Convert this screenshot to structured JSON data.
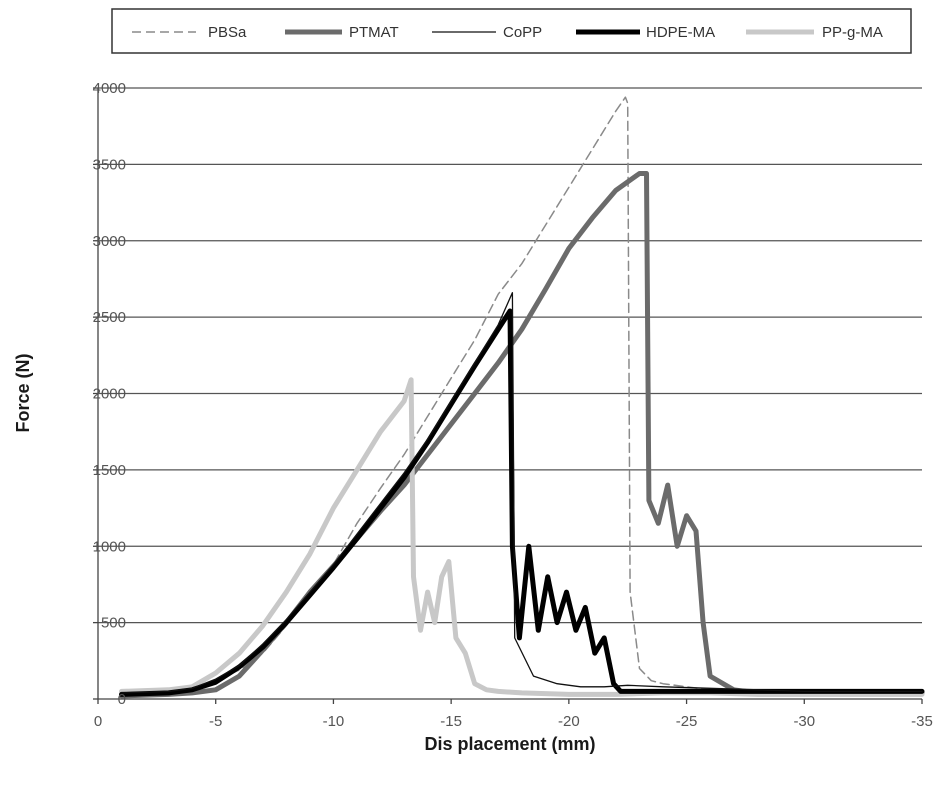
{
  "chart_data": {
    "type": "line",
    "title": "",
    "xlabel": "Dis placement (mm)",
    "ylabel": "Force (N)",
    "xlim": [
      0,
      -35
    ],
    "ylim": [
      0,
      4000
    ],
    "x_ticks": [
      0,
      -5,
      -10,
      -15,
      -20,
      -25,
      -30,
      -35
    ],
    "x_tick_labels": [
      "0",
      "-5",
      "-10",
      "-15",
      "-20",
      "-25",
      "-30",
      "-35"
    ],
    "y_ticks": [
      0,
      500,
      1000,
      1500,
      2000,
      2500,
      3000,
      3500,
      4000
    ],
    "y_tick_labels": [
      "0",
      "500",
      "1000",
      "1500",
      "2000",
      "2500",
      "3000",
      "3500",
      "4000"
    ],
    "grid": "horizontal",
    "legend_position": "top",
    "series": [
      {
        "name": "PBSa",
        "color": "#8a8a8a",
        "style": "dashed",
        "x": [
          -1,
          -3,
          -4,
          -5,
          -6,
          -7,
          -8,
          -9,
          -10,
          -11,
          -12,
          -13,
          -14,
          -15,
          -16,
          -17,
          -18,
          -19,
          -20,
          -21,
          -22,
          -22.4,
          -22.5,
          -22.6,
          -23,
          -23.5,
          -24,
          -25,
          -26,
          -28,
          -30,
          -32,
          -35
        ],
        "y": [
          40,
          50,
          70,
          120,
          190,
          300,
          480,
          700,
          880,
          1150,
          1380,
          1600,
          1850,
          2100,
          2350,
          2650,
          2850,
          3100,
          3350,
          3600,
          3850,
          3940,
          3900,
          700,
          200,
          120,
          100,
          80,
          60,
          40,
          40,
          40,
          40
        ]
      },
      {
        "name": "PTMAT",
        "color": "#6b6b6b",
        "style": "solid-thick",
        "x": [
          -1,
          -3,
          -4,
          -5,
          -6,
          -7,
          -8,
          -9,
          -10,
          -11,
          -12,
          -13,
          -14,
          -15,
          -16,
          -17,
          -18,
          -19,
          -20,
          -21,
          -22,
          -23,
          -23.3,
          -23.4,
          -23.8,
          -24.2,
          -24.6,
          -25,
          -25.4,
          -25.7,
          -26,
          -27,
          -28,
          -30,
          -32,
          -35
        ],
        "y": [
          20,
          30,
          40,
          60,
          150,
          320,
          500,
          700,
          870,
          1050,
          1230,
          1400,
          1600,
          1800,
          2000,
          2200,
          2420,
          2680,
          2950,
          3150,
          3330,
          3440,
          3440,
          1300,
          1150,
          1400,
          1000,
          1200,
          1100,
          500,
          150,
          60,
          40,
          40,
          40,
          40
        ]
      },
      {
        "name": "CoPP",
        "color": "#111111",
        "style": "solid-thin",
        "x": [
          -1,
          -3,
          -4,
          -5,
          -6,
          -7,
          -8,
          -9,
          -10,
          -11,
          -12,
          -13,
          -14,
          -15,
          -16,
          -17,
          -17.6,
          -17.7,
          -18.5,
          -19.5,
          -20.5,
          -21.5,
          -22.5,
          -24,
          -26,
          -28,
          -30,
          -32,
          -35
        ],
        "y": [
          40,
          50,
          70,
          130,
          220,
          360,
          520,
          700,
          880,
          1080,
          1280,
          1480,
          1700,
          1950,
          2200,
          2450,
          2660,
          400,
          150,
          100,
          80,
          80,
          90,
          80,
          70,
          60,
          50,
          50,
          50
        ]
      },
      {
        "name": "HDPE-MA",
        "color": "#000000",
        "style": "solid-thick",
        "x": [
          -1,
          -3,
          -4,
          -5,
          -6,
          -7,
          -8,
          -9,
          -10,
          -11,
          -12,
          -13,
          -14,
          -15,
          -16,
          -17,
          -17.5,
          -17.6,
          -17.9,
          -18.3,
          -18.7,
          -19.1,
          -19.5,
          -19.9,
          -20.3,
          -20.7,
          -21.1,
          -21.5,
          -21.9,
          -22.2,
          -24,
          -26,
          -28,
          -30,
          -32,
          -35
        ],
        "y": [
          30,
          40,
          60,
          110,
          210,
          340,
          500,
          680,
          860,
          1050,
          1250,
          1450,
          1680,
          1930,
          2180,
          2420,
          2540,
          1000,
          400,
          1000,
          450,
          800,
          500,
          700,
          450,
          600,
          300,
          400,
          100,
          50,
          50,
          50,
          50,
          50,
          50,
          50
        ]
      },
      {
        "name": "PP-g-MA",
        "color": "#c8c8c8",
        "style": "solid-thick",
        "x": [
          -1,
          -3,
          -4,
          -5,
          -6,
          -7,
          -8,
          -9,
          -10,
          -11,
          -12,
          -13,
          -13.3,
          -13.4,
          -13.7,
          -14,
          -14.3,
          -14.6,
          -14.9,
          -15.2,
          -15.6,
          -16,
          -16.5,
          -17,
          -18,
          -20,
          -22,
          -24,
          -26,
          -28,
          -30,
          -32,
          -35
        ],
        "y": [
          50,
          60,
          80,
          170,
          300,
          480,
          700,
          950,
          1250,
          1500,
          1750,
          1950,
          2090,
          800,
          450,
          700,
          500,
          800,
          900,
          400,
          300,
          100,
          60,
          50,
          40,
          30,
          30,
          40,
          40,
          30,
          30,
          30,
          30
        ]
      }
    ]
  }
}
